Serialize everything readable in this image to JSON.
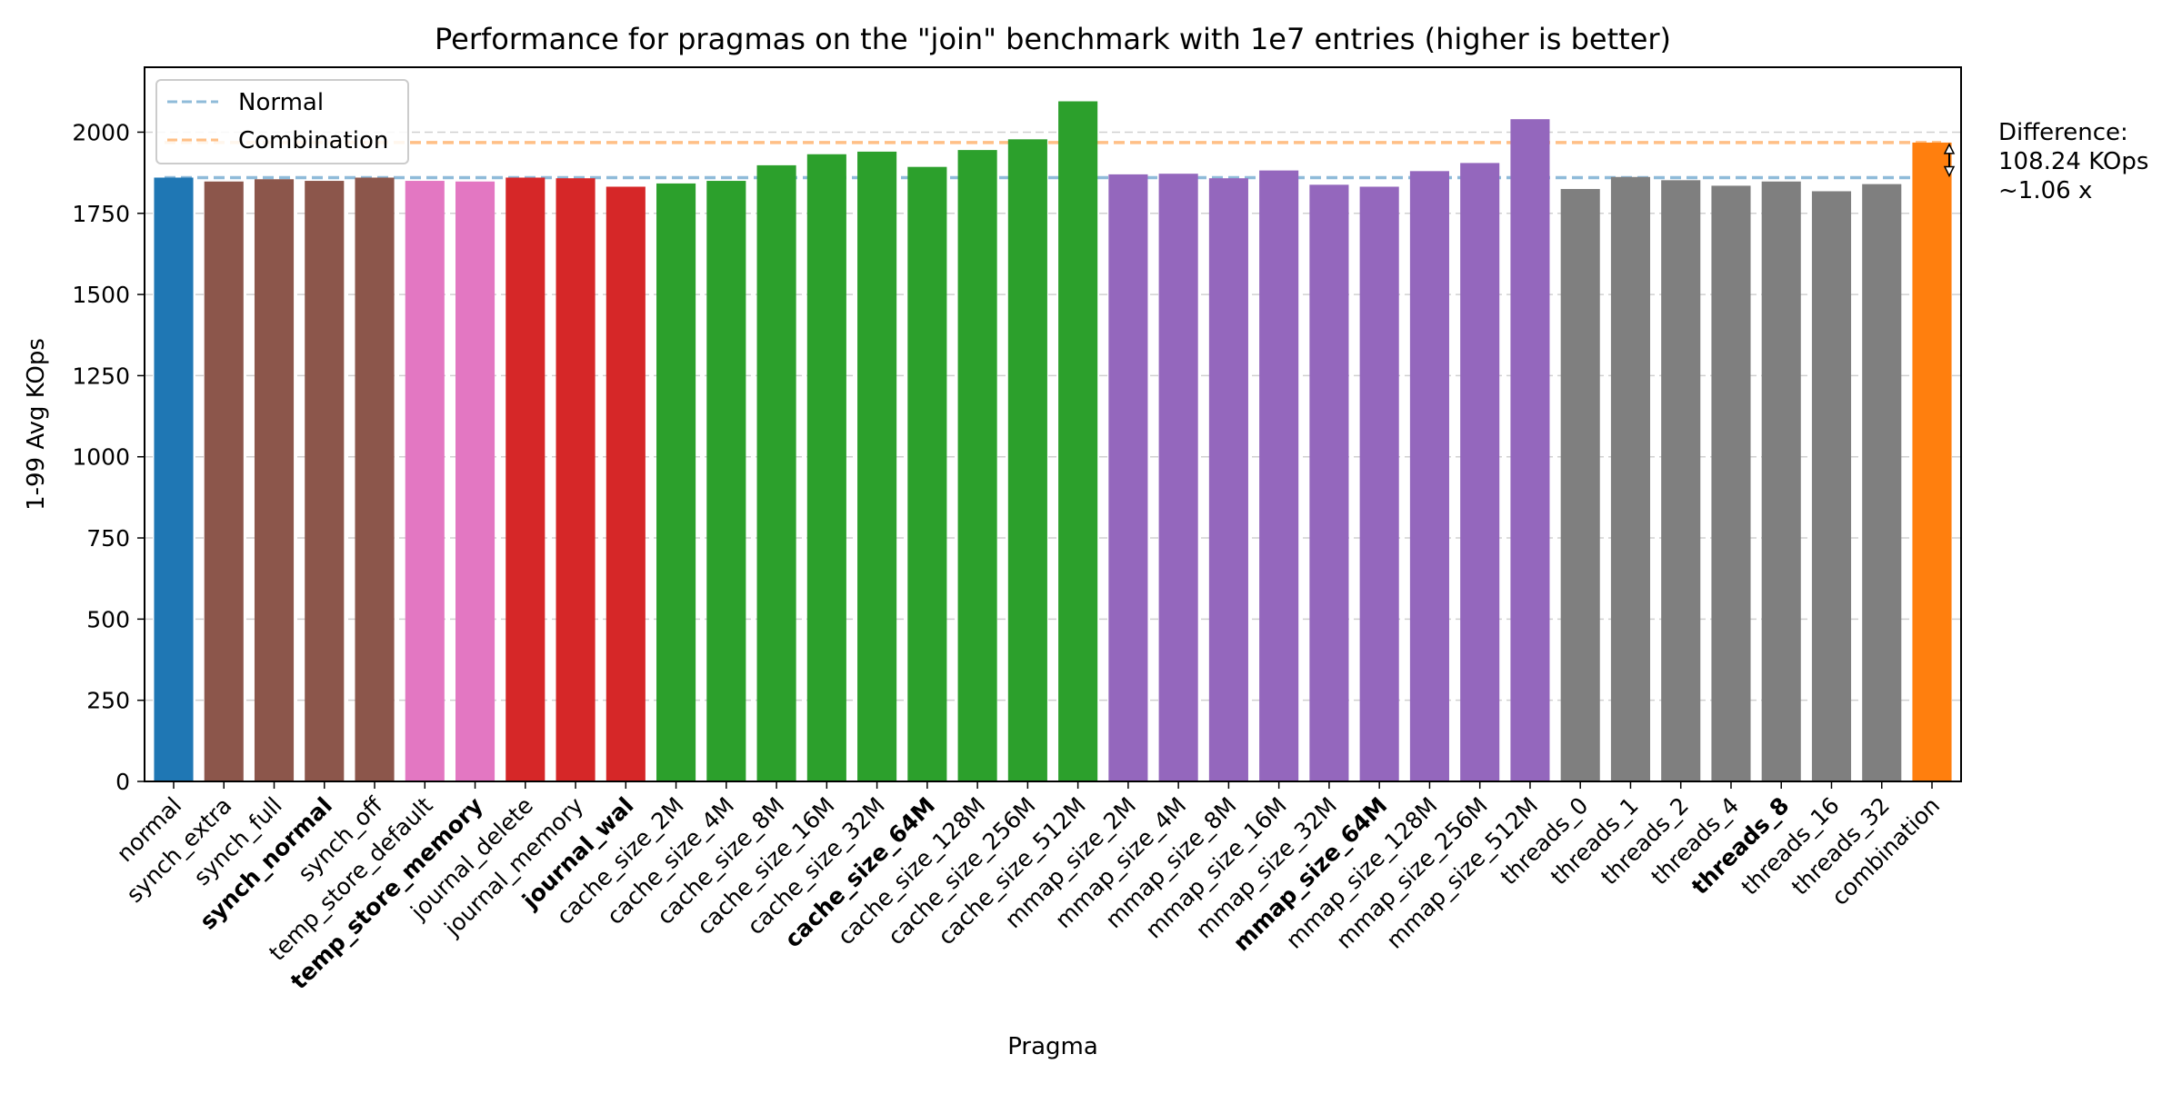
{
  "chart_data": {
    "type": "bar",
    "title": "Performance for pragmas on the \"join\" benchmark with 1e7 entries (higher is better)",
    "xlabel": "Pragma",
    "ylabel": "1-99 Avg KOps",
    "ylim": [
      0,
      2200
    ],
    "yticks": [
      0,
      250,
      500,
      750,
      1000,
      1250,
      1500,
      1750,
      2000
    ],
    "grid": "horizontal dashed",
    "legend_position": "top-left",
    "categories": [
      "normal",
      "synch_extra",
      "synch_full",
      "synch_normal",
      "synch_off",
      "temp_store_default",
      "temp_store_memory",
      "journal_delete",
      "journal_memory",
      "journal_wal",
      "cache_size_2M",
      "cache_size_4M",
      "cache_size_8M",
      "cache_size_16M",
      "cache_size_32M",
      "cache_size_64M",
      "cache_size_128M",
      "cache_size_256M",
      "cache_size_512M",
      "mmap_size_2M",
      "mmap_size_4M",
      "mmap_size_8M",
      "mmap_size_16M",
      "mmap_size_32M",
      "mmap_size_64M",
      "mmap_size_128M",
      "mmap_size_256M",
      "mmap_size_512M",
      "threads_0",
      "threads_1",
      "threads_2",
      "threads_4",
      "threads_8",
      "threads_16",
      "threads_32",
      "combination"
    ],
    "values": [
      1860,
      1848,
      1855,
      1850,
      1860,
      1850,
      1848,
      1860,
      1858,
      1832,
      1842,
      1850,
      1898,
      1932,
      1940,
      1893,
      1945,
      1978,
      2095,
      1870,
      1872,
      1858,
      1882,
      1838,
      1832,
      1880,
      1905,
      2040,
      1825,
      1862,
      1852,
      1835,
      1848,
      1818,
      1840,
      1968
    ],
    "bold_labels": [
      "synch_normal",
      "temp_store_memory",
      "journal_wal",
      "cache_size_64M",
      "mmap_size_64M",
      "threads_8"
    ],
    "bar_colors": [
      "#1f77b4",
      "#8c564b",
      "#8c564b",
      "#8c564b",
      "#8c564b",
      "#e377c2",
      "#e377c2",
      "#d62728",
      "#d62728",
      "#d62728",
      "#2ca02c",
      "#2ca02c",
      "#2ca02c",
      "#2ca02c",
      "#2ca02c",
      "#2ca02c",
      "#2ca02c",
      "#2ca02c",
      "#2ca02c",
      "#9467bd",
      "#9467bd",
      "#9467bd",
      "#9467bd",
      "#9467bd",
      "#9467bd",
      "#9467bd",
      "#9467bd",
      "#9467bd",
      "#7f7f7f",
      "#7f7f7f",
      "#7f7f7f",
      "#7f7f7f",
      "#7f7f7f",
      "#7f7f7f",
      "#7f7f7f",
      "#ff7f0e"
    ],
    "reference_lines": [
      {
        "name": "Normal",
        "value": 1860,
        "color": "#1f77b4"
      },
      {
        "name": "Combination",
        "value": 1968,
        "color": "#ff7f0e"
      }
    ],
    "annotation": {
      "lines": [
        "Difference:",
        "108.24 KOps",
        "~1.06 x"
      ]
    }
  }
}
